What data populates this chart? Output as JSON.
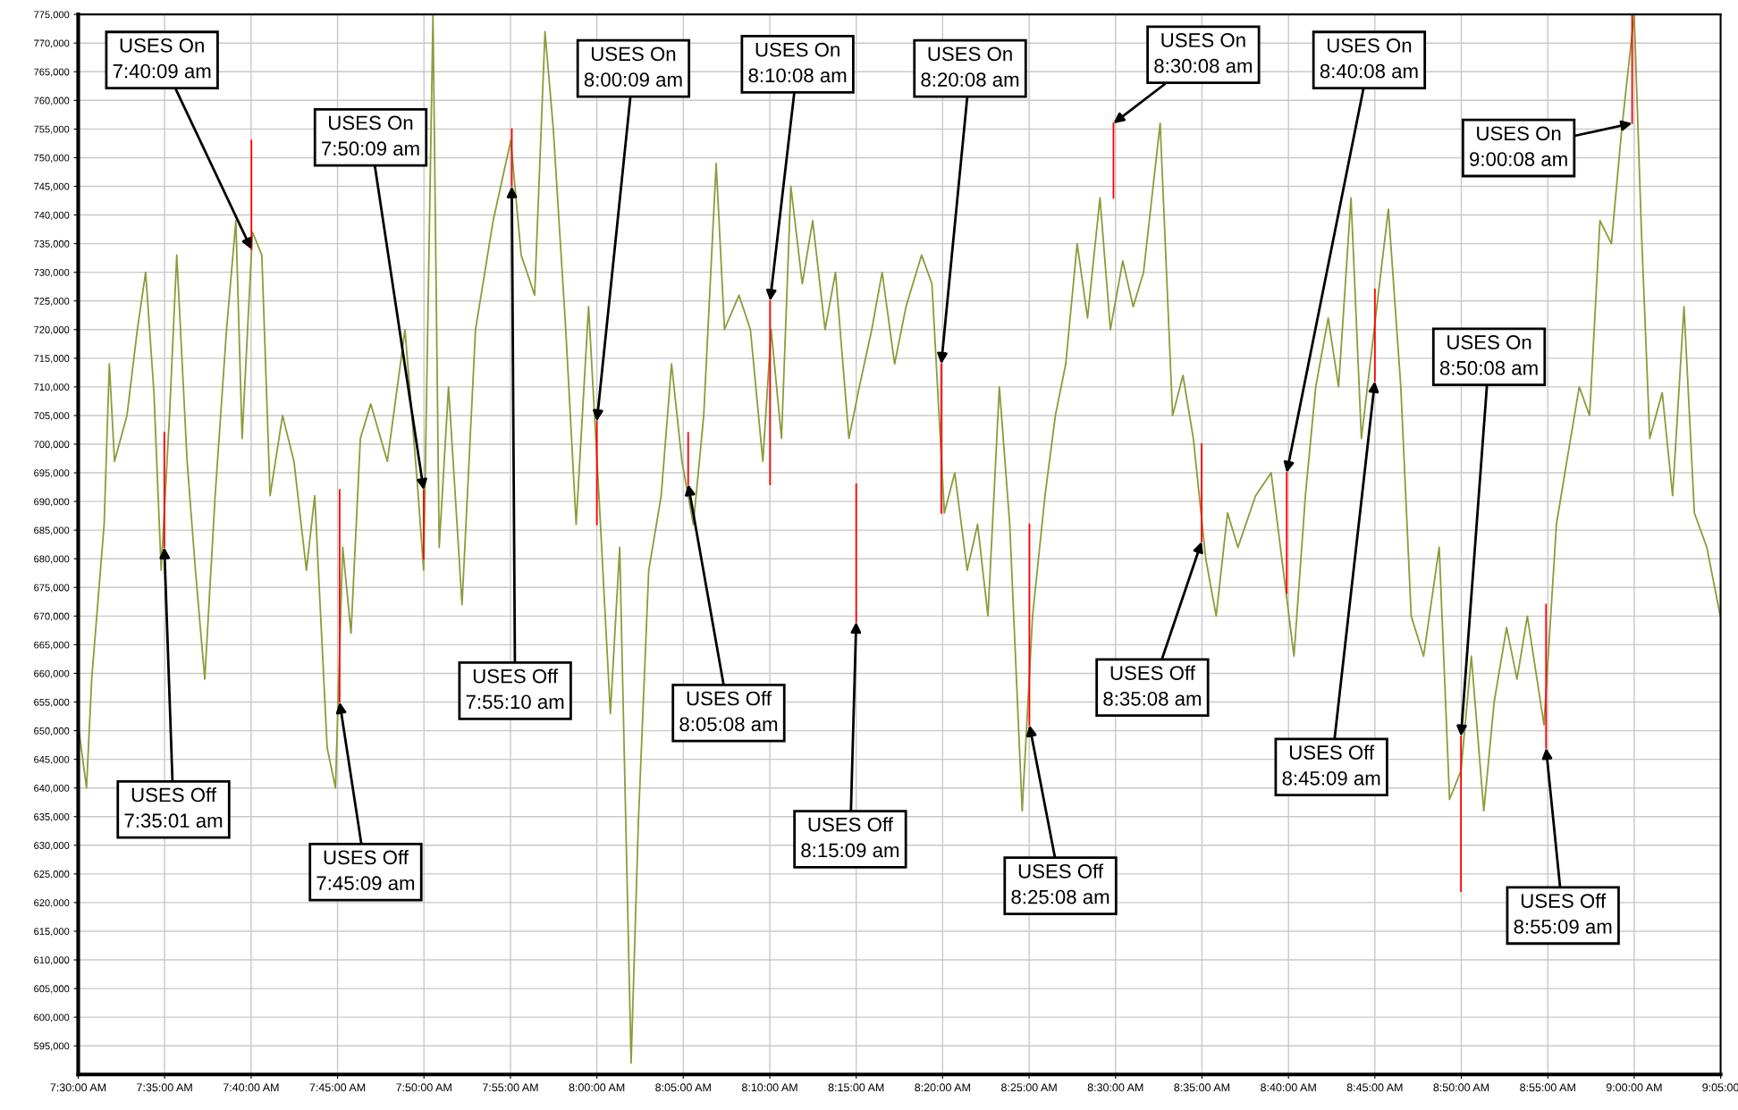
{
  "chart_data": {
    "type": "line",
    "xlim": [
      7.5,
      9.0833
    ],
    "ylim": [
      590000,
      775000
    ],
    "xticks": [
      {
        "value": 7.5,
        "label": "7:30:00 AM"
      },
      {
        "value": 7.5833,
        "label": "7:35:00 AM"
      },
      {
        "value": 7.6667,
        "label": "7:40:00 AM"
      },
      {
        "value": 7.75,
        "label": "7:45:00 AM"
      },
      {
        "value": 7.8333,
        "label": "7:50:00 AM"
      },
      {
        "value": 7.9167,
        "label": "7:55:00 AM"
      },
      {
        "value": 8.0,
        "label": "8:00:00 AM"
      },
      {
        "value": 8.0833,
        "label": "8:05:00 AM"
      },
      {
        "value": 8.1667,
        "label": "8:10:00 AM"
      },
      {
        "value": 8.25,
        "label": "8:15:00 AM"
      },
      {
        "value": 8.3333,
        "label": "8:20:00 AM"
      },
      {
        "value": 8.4167,
        "label": "8:25:00 AM"
      },
      {
        "value": 8.5,
        "label": "8:30:00 AM"
      },
      {
        "value": 8.5833,
        "label": "8:35:00 AM"
      },
      {
        "value": 8.6667,
        "label": "8:40:00 AM"
      },
      {
        "value": 8.75,
        "label": "8:45:00 AM"
      },
      {
        "value": 8.8333,
        "label": "8:50:00 AM"
      },
      {
        "value": 8.9167,
        "label": "8:55:00 AM"
      },
      {
        "value": 9.0,
        "label": "9:00:00 AM"
      },
      {
        "value": 9.0833,
        "label": "9:05:00"
      }
    ],
    "yticks": [
      {
        "value": 595000,
        "label": "595,000"
      },
      {
        "value": 600000,
        "label": "600,000"
      },
      {
        "value": 605000,
        "label": "605,000"
      },
      {
        "value": 610000,
        "label": "610,000"
      },
      {
        "value": 615000,
        "label": "615,000"
      },
      {
        "value": 620000,
        "label": "620,000"
      },
      {
        "value": 625000,
        "label": "625,000"
      },
      {
        "value": 630000,
        "label": "630,000"
      },
      {
        "value": 635000,
        "label": "635,000"
      },
      {
        "value": 640000,
        "label": "640,000"
      },
      {
        "value": 645000,
        "label": "645,000"
      },
      {
        "value": 650000,
        "label": "650,000"
      },
      {
        "value": 655000,
        "label": "655,000"
      },
      {
        "value": 660000,
        "label": "660,000"
      },
      {
        "value": 665000,
        "label": "665,000"
      },
      {
        "value": 670000,
        "label": "670,000"
      },
      {
        "value": 675000,
        "label": "675,000"
      },
      {
        "value": 680000,
        "label": "680,000"
      },
      {
        "value": 685000,
        "label": "685,000"
      },
      {
        "value": 690000,
        "label": "690,000"
      },
      {
        "value": 695000,
        "label": "695,000"
      },
      {
        "value": 700000,
        "label": "700,000"
      },
      {
        "value": 705000,
        "label": "705,000"
      },
      {
        "value": 710000,
        "label": "710,000"
      },
      {
        "value": 715000,
        "label": "715,000"
      },
      {
        "value": 720000,
        "label": "720,000"
      },
      {
        "value": 725000,
        "label": "725,000"
      },
      {
        "value": 730000,
        "label": "730,000"
      },
      {
        "value": 735000,
        "label": "735,000"
      },
      {
        "value": 740000,
        "label": "740,000"
      },
      {
        "value": 745000,
        "label": "745,000"
      },
      {
        "value": 750000,
        "label": "750,000"
      },
      {
        "value": 755000,
        "label": "755,000"
      },
      {
        "value": 760000,
        "label": "760,000"
      },
      {
        "value": 765000,
        "label": "765,000"
      },
      {
        "value": 770000,
        "label": "770,000"
      },
      {
        "value": 775000,
        "label": "775,000"
      }
    ],
    "grid": true,
    "legend": false,
    "marker": "none",
    "line_style": "solid",
    "series": [
      {
        "color": "#8c9c3a",
        "x": [
          7.5,
          7.508,
          7.513,
          7.525,
          7.53,
          7.535,
          7.547,
          7.557,
          7.565,
          7.573,
          7.58,
          7.588,
          7.595,
          7.605,
          7.613,
          7.622,
          7.632,
          7.643,
          7.652,
          7.658,
          7.668,
          7.677,
          7.685,
          7.697,
          7.708,
          7.72,
          7.728,
          7.74,
          7.748,
          7.755,
          7.763,
          7.772,
          7.782,
          7.798,
          7.815,
          7.827,
          7.833,
          7.842,
          7.848,
          7.857,
          7.87,
          7.883,
          7.9,
          7.917,
          7.927,
          7.94,
          7.95,
          7.958,
          7.97,
          7.98,
          7.992,
          8.002,
          8.013,
          8.022,
          8.033,
          8.04,
          8.05,
          8.062,
          8.072,
          8.082,
          8.093,
          8.103,
          8.115,
          8.123,
          8.137,
          8.148,
          8.16,
          8.168,
          8.178,
          8.187,
          8.198,
          8.208,
          8.22,
          8.23,
          8.243,
          8.253,
          8.265,
          8.275,
          8.287,
          8.298,
          8.313,
          8.323,
          8.335,
          8.345,
          8.357,
          8.367,
          8.377,
          8.388,
          8.398,
          8.41,
          8.42,
          8.432,
          8.442,
          8.452,
          8.463,
          8.473,
          8.485,
          8.495,
          8.507,
          8.517,
          8.527,
          8.543,
          8.555,
          8.565,
          8.575,
          8.587,
          8.597,
          8.608,
          8.618,
          8.635,
          8.65,
          8.672,
          8.683,
          8.693,
          8.705,
          8.715,
          8.727,
          8.737,
          8.748,
          8.763,
          8.775,
          8.785,
          8.797,
          8.812,
          8.822,
          8.833,
          8.843,
          8.855,
          8.865,
          8.877,
          8.887,
          8.897,
          8.913,
          8.925,
          8.935,
          8.947,
          8.957,
          8.967,
          8.978,
          8.988,
          9.0,
          9.007,
          9.015,
          9.027,
          9.037,
          9.048,
          9.058,
          9.07,
          9.083
        ],
        "values": [
          651000,
          640000,
          659000,
          686000,
          714000,
          697000,
          705000,
          720000,
          730000,
          709000,
          678000,
          705000,
          733000,
          697000,
          678000,
          659000,
          691000,
          720000,
          739000,
          701000,
          737000,
          733000,
          691000,
          705000,
          697000,
          678000,
          691000,
          647000,
          640000,
          682000,
          667000,
          701000,
          707000,
          697000,
          720000,
          693000,
          678000,
          775000,
          682000,
          710000,
          672000,
          720000,
          739000,
          753000,
          733000,
          726000,
          772000,
          755000,
          720000,
          686000,
          724000,
          691000,
          653000,
          682000,
          592000,
          634000,
          678000,
          691000,
          714000,
          697000,
          686000,
          705000,
          749000,
          720000,
          726000,
          720000,
          697000,
          720000,
          701000,
          745000,
          728000,
          739000,
          720000,
          730000,
          701000,
          710000,
          720000,
          730000,
          714000,
          724000,
          733000,
          728000,
          688000,
          695000,
          678000,
          686000,
          670000,
          710000,
          686000,
          636000,
          670000,
          691000,
          705000,
          714000,
          735000,
          722000,
          743000,
          720000,
          732000,
          724000,
          730000,
          756000,
          705000,
          712000,
          701000,
          680000,
          670000,
          688000,
          682000,
          691000,
          695000,
          663000,
          691000,
          710000,
          722000,
          710000,
          743000,
          701000,
          718000,
          741000,
          710000,
          670000,
          663000,
          682000,
          638000,
          643000,
          663000,
          636000,
          655000,
          668000,
          659000,
          670000,
          651000,
          686000,
          697000,
          710000,
          705000,
          739000,
          735000,
          755000,
          775000,
          737000,
          701000,
          709000,
          691000,
          724000,
          688000,
          682000,
          670000
        ]
      },
      {
        "color": "#ff0000",
        "x": [
          7.583,
          7.583
        ],
        "values": [
          702000,
          682000
        ]
      },
      {
        "color": "#ff0000",
        "x": [
          7.667,
          7.667
        ],
        "values": [
          753000,
          734000
        ]
      },
      {
        "color": "#ff0000",
        "x": [
          7.752,
          7.752
        ],
        "values": [
          692000,
          655000
        ]
      },
      {
        "color": "#ff0000",
        "x": [
          7.833,
          7.833
        ],
        "values": [
          692000,
          680000
        ]
      },
      {
        "color": "#ff0000",
        "x": [
          7.918,
          7.918
        ],
        "values": [
          755000,
          745000
        ]
      },
      {
        "color": "#ff0000",
        "x": [
          8.0,
          8.0
        ],
        "values": [
          704000,
          686000
        ]
      },
      {
        "color": "#ff0000",
        "x": [
          8.088,
          8.088
        ],
        "values": [
          702000,
          693000
        ]
      },
      {
        "color": "#ff0000",
        "x": [
          8.167,
          8.167
        ],
        "values": [
          725000,
          693000
        ]
      },
      {
        "color": "#ff0000",
        "x": [
          8.25,
          8.25
        ],
        "values": [
          693000,
          669000
        ]
      },
      {
        "color": "#ff0000",
        "x": [
          8.332,
          8.332
        ],
        "values": [
          714000,
          688000
        ]
      },
      {
        "color": "#ff0000",
        "x": [
          8.417,
          8.417
        ],
        "values": [
          686000,
          651000
        ]
      },
      {
        "color": "#ff0000",
        "x": [
          8.498,
          8.498
        ],
        "values": [
          756000,
          743000
        ]
      },
      {
        "color": "#ff0000",
        "x": [
          8.583,
          8.583
        ],
        "values": [
          700000,
          683000
        ]
      },
      {
        "color": "#ff0000",
        "x": [
          8.665,
          8.665
        ],
        "values": [
          695000,
          674000
        ]
      },
      {
        "color": "#ff0000",
        "x": [
          8.75,
          8.75
        ],
        "values": [
          727000,
          711000
        ]
      },
      {
        "color": "#ff0000",
        "x": [
          8.833,
          8.833
        ],
        "values": [
          649000,
          622000
        ]
      },
      {
        "color": "#ff0000",
        "x": [
          8.915,
          8.915
        ],
        "values": [
          672000,
          647000
        ]
      },
      {
        "color": "#ff0000",
        "x": [
          8.998,
          8.998
        ],
        "values": [
          775000,
          756000
        ]
      }
    ],
    "annotations": [
      {
        "text": "USES Off\n7:35:01 am",
        "x": 7.583,
        "y": 682000
      },
      {
        "text": "USES On\n7:40:09 am",
        "x": 7.667,
        "y": 734000
      },
      {
        "text": "USES Off\n7:45:09 am",
        "x": 7.752,
        "y": 655000
      },
      {
        "text": "USES On\n7:50:09 am",
        "x": 7.833,
        "y": 692000
      },
      {
        "text": "USES Off\n7:55:10 am",
        "x": 7.918,
        "y": 745000
      },
      {
        "text": "USES On\n8:00:09 am",
        "x": 8.0,
        "y": 704000
      },
      {
        "text": "USES Off\n8:05:08 am",
        "x": 8.088,
        "y": 693000
      },
      {
        "text": "USES On\n8:10:08 am",
        "x": 8.167,
        "y": 725000
      },
      {
        "text": "USES Off\n8:15:09 am",
        "x": 8.25,
        "y": 669000
      },
      {
        "text": "USES On\n8:20:08 am",
        "x": 8.332,
        "y": 714000
      },
      {
        "text": "USES Off\n8:25:08 am",
        "x": 8.417,
        "y": 651000
      },
      {
        "text": "USES On\n8:30:08 am",
        "x": 8.498,
        "y": 756000
      },
      {
        "text": "USES Off\n8:35:08 am",
        "x": 8.583,
        "y": 683000
      },
      {
        "text": "USES On\n8:40:08 am",
        "x": 8.665,
        "y": 695000
      },
      {
        "text": "USES Off\n8:45:09 am",
        "x": 8.75,
        "y": 711000
      },
      {
        "text": "USES On\n8:50:08 am",
        "x": 8.833,
        "y": 649000
      },
      {
        "text": "USES Off\n8:55:09 am",
        "x": 8.915,
        "y": 647000
      },
      {
        "text": "USES On\n9:00:08 am",
        "x": 8.998,
        "y": 756000
      }
    ]
  }
}
